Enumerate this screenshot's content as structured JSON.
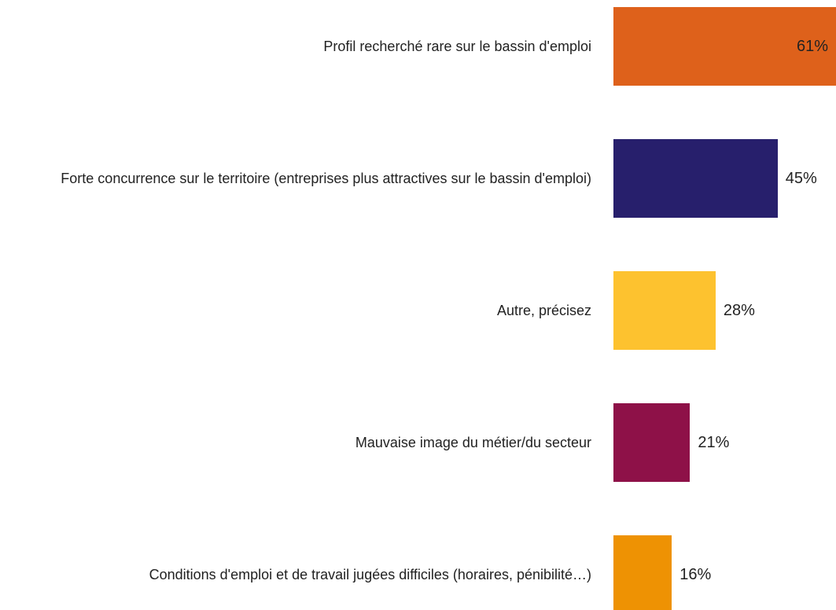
{
  "chart_data": {
    "type": "bar",
    "orientation": "horizontal",
    "categories": [
      "Profil recherché rare sur le bassin d'emploi",
      "Forte concurrence sur le territoire (entreprises plus attractives sur le bassin d'emploi)",
      "Autre, précisez",
      "Mauvaise image du métier/du secteur",
      "Conditions d'emploi et de travail jugées difficiles (horaires, pénibilité…)"
    ],
    "values": [
      61,
      45,
      28,
      21,
      16
    ],
    "value_labels": [
      "61%",
      "45%",
      "28%",
      "21%",
      "16%"
    ],
    "colors": [
      "#de611b",
      "#271f6c",
      "#fdc22f",
      "#8e1148",
      "#ee9203"
    ]
  }
}
